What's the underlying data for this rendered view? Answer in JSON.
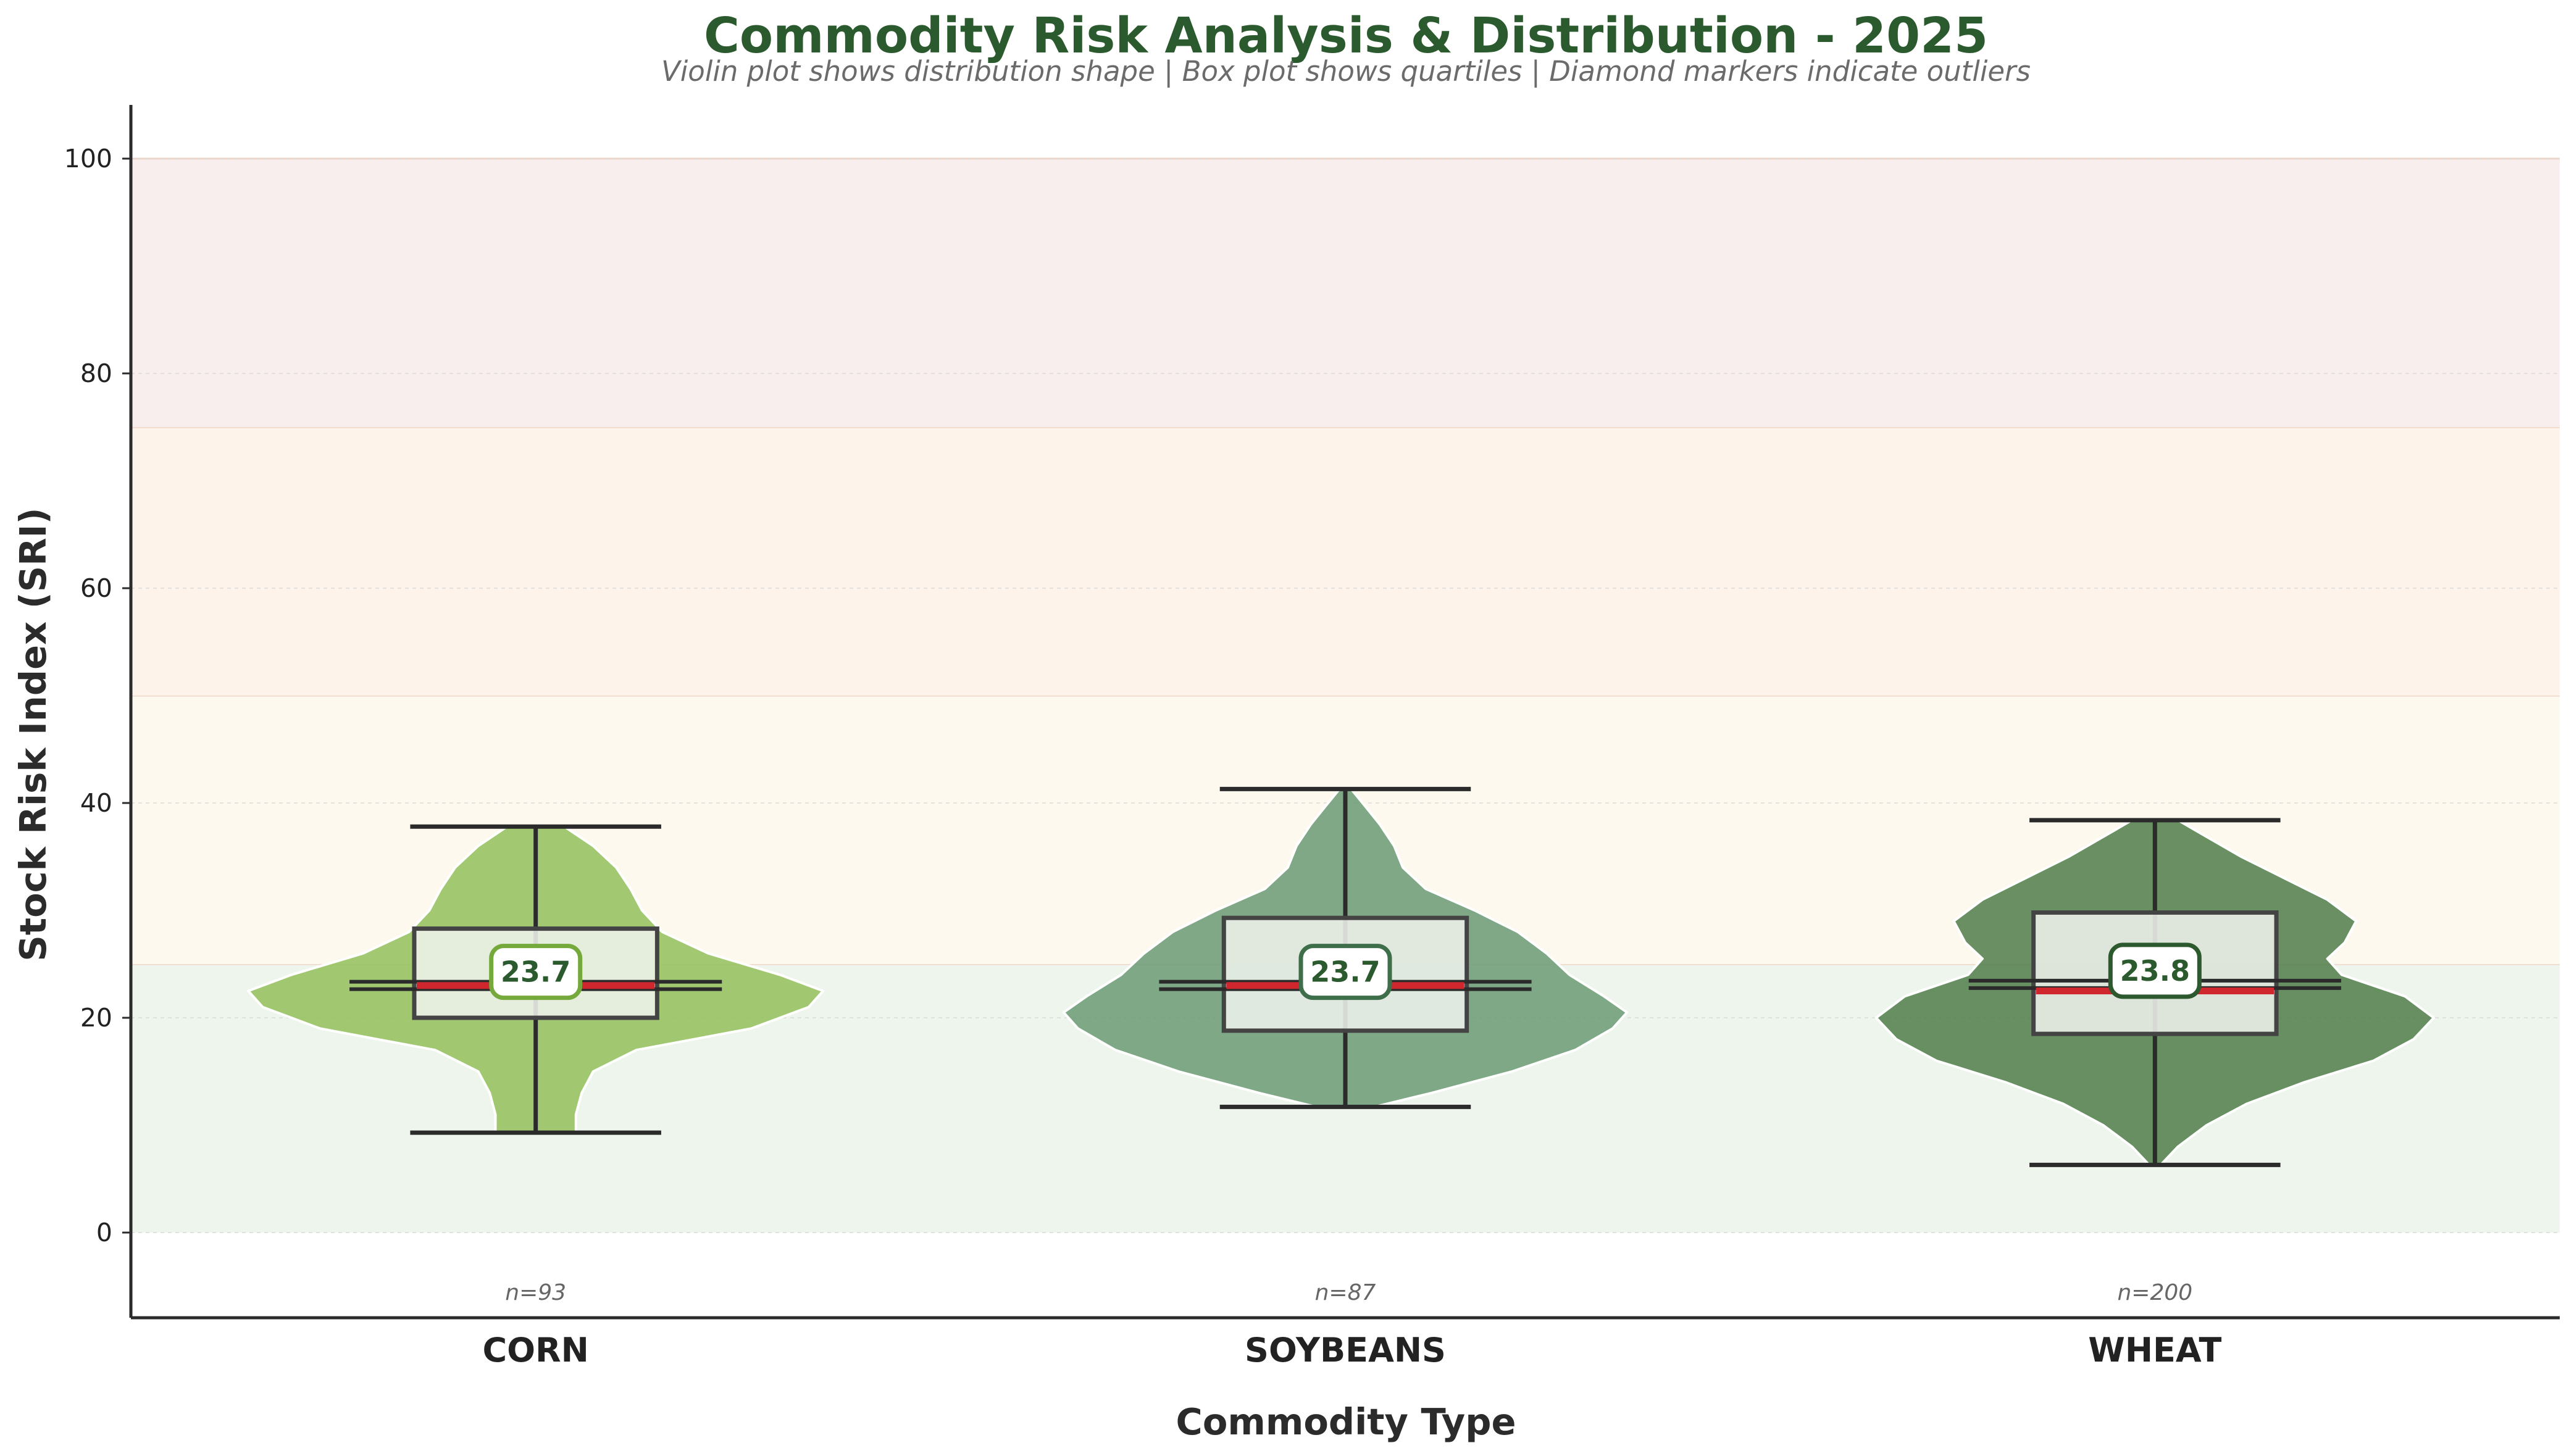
{
  "chart_data": {
    "type": "violin",
    "title": "Commodity Risk Analysis & Distribution - 2025",
    "subtitle": "Violin plot shows distribution shape | Box plot shows quartiles | Diamond markers indicate outliers",
    "xlabel": "Commodity Type",
    "ylabel": "Stock Risk Index (SRI)",
    "ylim": [
      -8,
      105
    ],
    "yticks": [
      "0",
      "20",
      "40",
      "60",
      "80",
      "100"
    ],
    "grid": "horizontal dotted",
    "risk_bands": [
      {
        "from": 0,
        "to": 25,
        "color": "#eef5ec"
      },
      {
        "from": 25,
        "to": 50,
        "color": "#fdf9ee"
      },
      {
        "from": 50,
        "to": 75,
        "color": "#fdf3ea"
      },
      {
        "from": 75,
        "to": 100,
        "color": "#f9eeee"
      }
    ],
    "series": [
      {
        "category": "CORN",
        "n_label": "n=93",
        "mean_label": "23.7",
        "mean": 23.7,
        "median": 23.0,
        "q1": 20.0,
        "q3": 28.3,
        "whisker_low": 9.3,
        "whisker_high": 37.8,
        "color": "#93c05c",
        "box_edge_color": "#76a93c",
        "density": [
          [
            9.3,
            0.14
          ],
          [
            11,
            0.14
          ],
          [
            13,
            0.16
          ],
          [
            15,
            0.2
          ],
          [
            17,
            0.35
          ],
          [
            19,
            0.75
          ],
          [
            21,
            0.95
          ],
          [
            22.5,
            1.0
          ],
          [
            24,
            0.85
          ],
          [
            26,
            0.6
          ],
          [
            28,
            0.44
          ],
          [
            30,
            0.37
          ],
          [
            32,
            0.33
          ],
          [
            34,
            0.28
          ],
          [
            36,
            0.2
          ],
          [
            37.8,
            0.1
          ]
        ]
      },
      {
        "category": "SOYBEANS",
        "n_label": "n=87",
        "mean_label": "23.7",
        "mean": 23.7,
        "median": 23.0,
        "q1": 18.8,
        "q3": 29.3,
        "whisker_low": 11.7,
        "whisker_high": 41.3,
        "color": "#6a9a74",
        "box_edge_color": "#3e6e4a",
        "density": [
          [
            11.7,
            0.1
          ],
          [
            13,
            0.3
          ],
          [
            15,
            0.58
          ],
          [
            17,
            0.8
          ],
          [
            19,
            0.93
          ],
          [
            20.5,
            0.98
          ],
          [
            22,
            0.9
          ],
          [
            24,
            0.78
          ],
          [
            26,
            0.7
          ],
          [
            28,
            0.6
          ],
          [
            30,
            0.45
          ],
          [
            32,
            0.28
          ],
          [
            34,
            0.2
          ],
          [
            36,
            0.17
          ],
          [
            38,
            0.12
          ],
          [
            40,
            0.06
          ],
          [
            41.3,
            0.02
          ]
        ]
      },
      {
        "category": "WHEAT",
        "n_label": "n=200",
        "mean_label": "23.8",
        "mean": 23.8,
        "median": 22.5,
        "q1": 18.5,
        "q3": 29.8,
        "whisker_low": 6.3,
        "whisker_high": 38.4,
        "color": "#4f7c4a",
        "box_edge_color": "#2c5a2e",
        "density": [
          [
            6.3,
            0.02
          ],
          [
            8,
            0.08
          ],
          [
            10,
            0.18
          ],
          [
            12,
            0.32
          ],
          [
            14,
            0.52
          ],
          [
            16,
            0.76
          ],
          [
            18,
            0.9
          ],
          [
            20,
            0.97
          ],
          [
            22,
            0.87
          ],
          [
            24,
            0.65
          ],
          [
            25.5,
            0.6
          ],
          [
            27,
            0.66
          ],
          [
            29,
            0.7
          ],
          [
            31,
            0.6
          ],
          [
            33,
            0.45
          ],
          [
            35,
            0.3
          ],
          [
            37,
            0.17
          ],
          [
            38.4,
            0.08
          ]
        ]
      }
    ]
  },
  "colors": {
    "title": "#2b5a2e",
    "subtitle": "#6b6b6b",
    "median_line": "#d0262e",
    "box_fill": "#eef1ec",
    "whisker": "#2b2b2b",
    "mean_text": "#2b5a2e"
  }
}
